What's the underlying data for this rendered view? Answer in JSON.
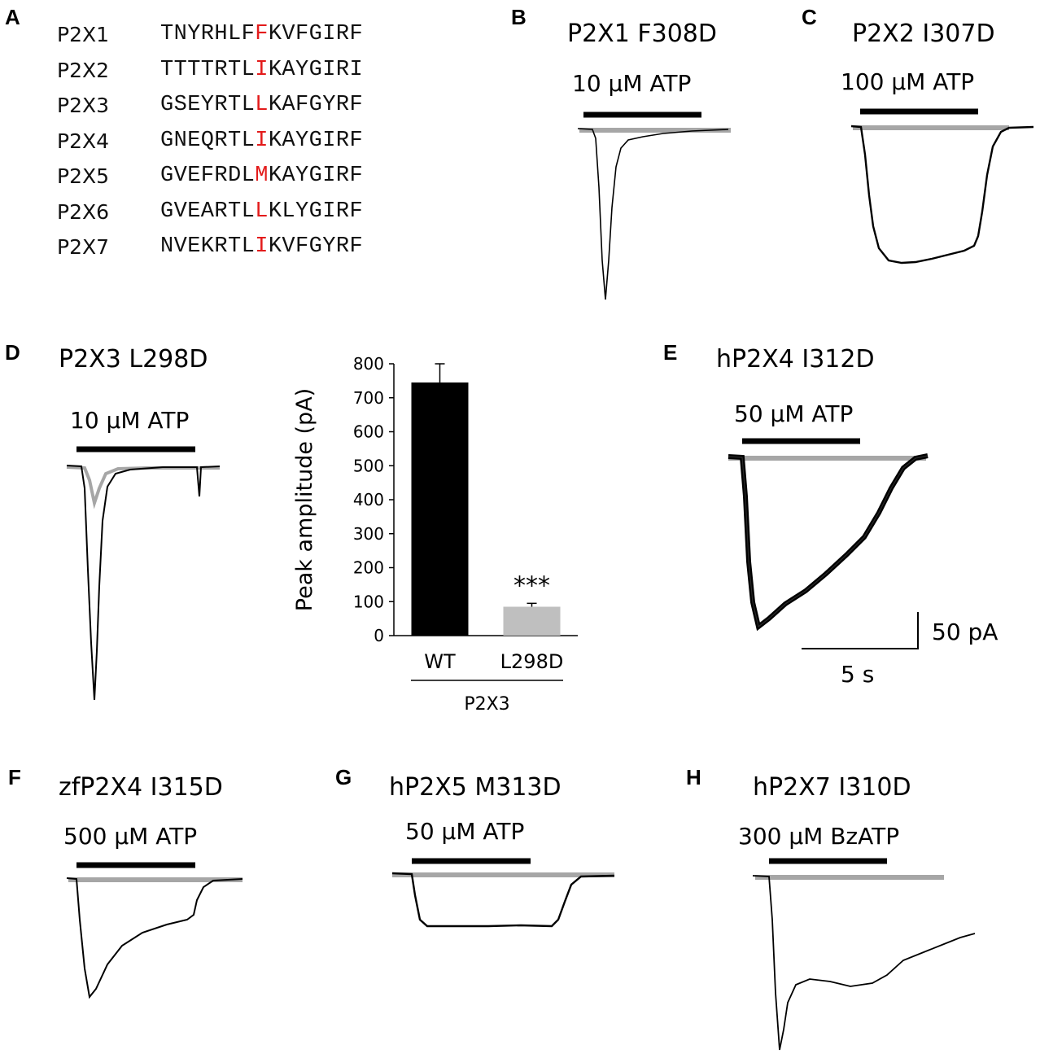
{
  "panels": {
    "A": "A",
    "B": "B",
    "C": "C",
    "D": "D",
    "E": "E",
    "F": "F",
    "G": "G",
    "H": "H"
  },
  "alignment": [
    {
      "name": "P2X1",
      "pre": "TNYRHLF",
      "res": "F",
      "post": "KVFGIRF"
    },
    {
      "name": "P2X2",
      "pre": "TTTTRTL",
      "res": "I",
      "post": "KAYGIRI"
    },
    {
      "name": "P2X3",
      "pre": "GSEYRTL",
      "res": "L",
      "post": "KAFGYRF"
    },
    {
      "name": "P2X4",
      "pre": "GNEQRTL",
      "res": "I",
      "post": "KAYGIRF"
    },
    {
      "name": "P2X5",
      "pre": "GVEFRDL",
      "res": "M",
      "post": "KAYGIRF"
    },
    {
      "name": "P2X6",
      "pre": "GVEARTL",
      "res": "L",
      "post": "KLYGIRF"
    },
    {
      "name": "P2X7",
      "pre": "NVEKRTL",
      "res": "I",
      "post": "KVFGYRF"
    }
  ],
  "traces": {
    "B": {
      "title": "P2X1 F308D",
      "agonist": "10 µM ATP"
    },
    "C": {
      "title": "P2X2 I307D",
      "agonist": "100 µM ATP"
    },
    "D": {
      "title": "P2X3 L298D",
      "agonist": "10 µM ATP"
    },
    "E": {
      "title": "hP2X4 I312D",
      "agonist": "50 µM ATP"
    },
    "F": {
      "title": "zfP2X4 I315D",
      "agonist": "500 µM ATP"
    },
    "G": {
      "title": "hP2X5 M313D",
      "agonist": "50 µM ATP"
    },
    "H": {
      "title": "hP2X7 I310D",
      "agonist": "300 µM BzATP"
    }
  },
  "scale_bar": {
    "current": "50 pA",
    "time": "5 s"
  },
  "colors": {
    "mutant": "#000000",
    "wild_type": "#a6a6a6",
    "highlight": "#e31b1b"
  },
  "chart_data": {
    "type": "bar",
    "categories": [
      "WT",
      "L298D"
    ],
    "values": [
      745,
      85
    ],
    "errors": [
      55,
      10
    ],
    "bar_colors": [
      "#000000",
      "#bfbfbf"
    ],
    "ylabel": "Peak amplitude (pA)",
    "ylim": [
      0,
      800
    ],
    "yticks": [
      0,
      100,
      200,
      300,
      400,
      500,
      600,
      700,
      800
    ],
    "group_label": "P2X3",
    "annotation": "***",
    "grid": false
  }
}
